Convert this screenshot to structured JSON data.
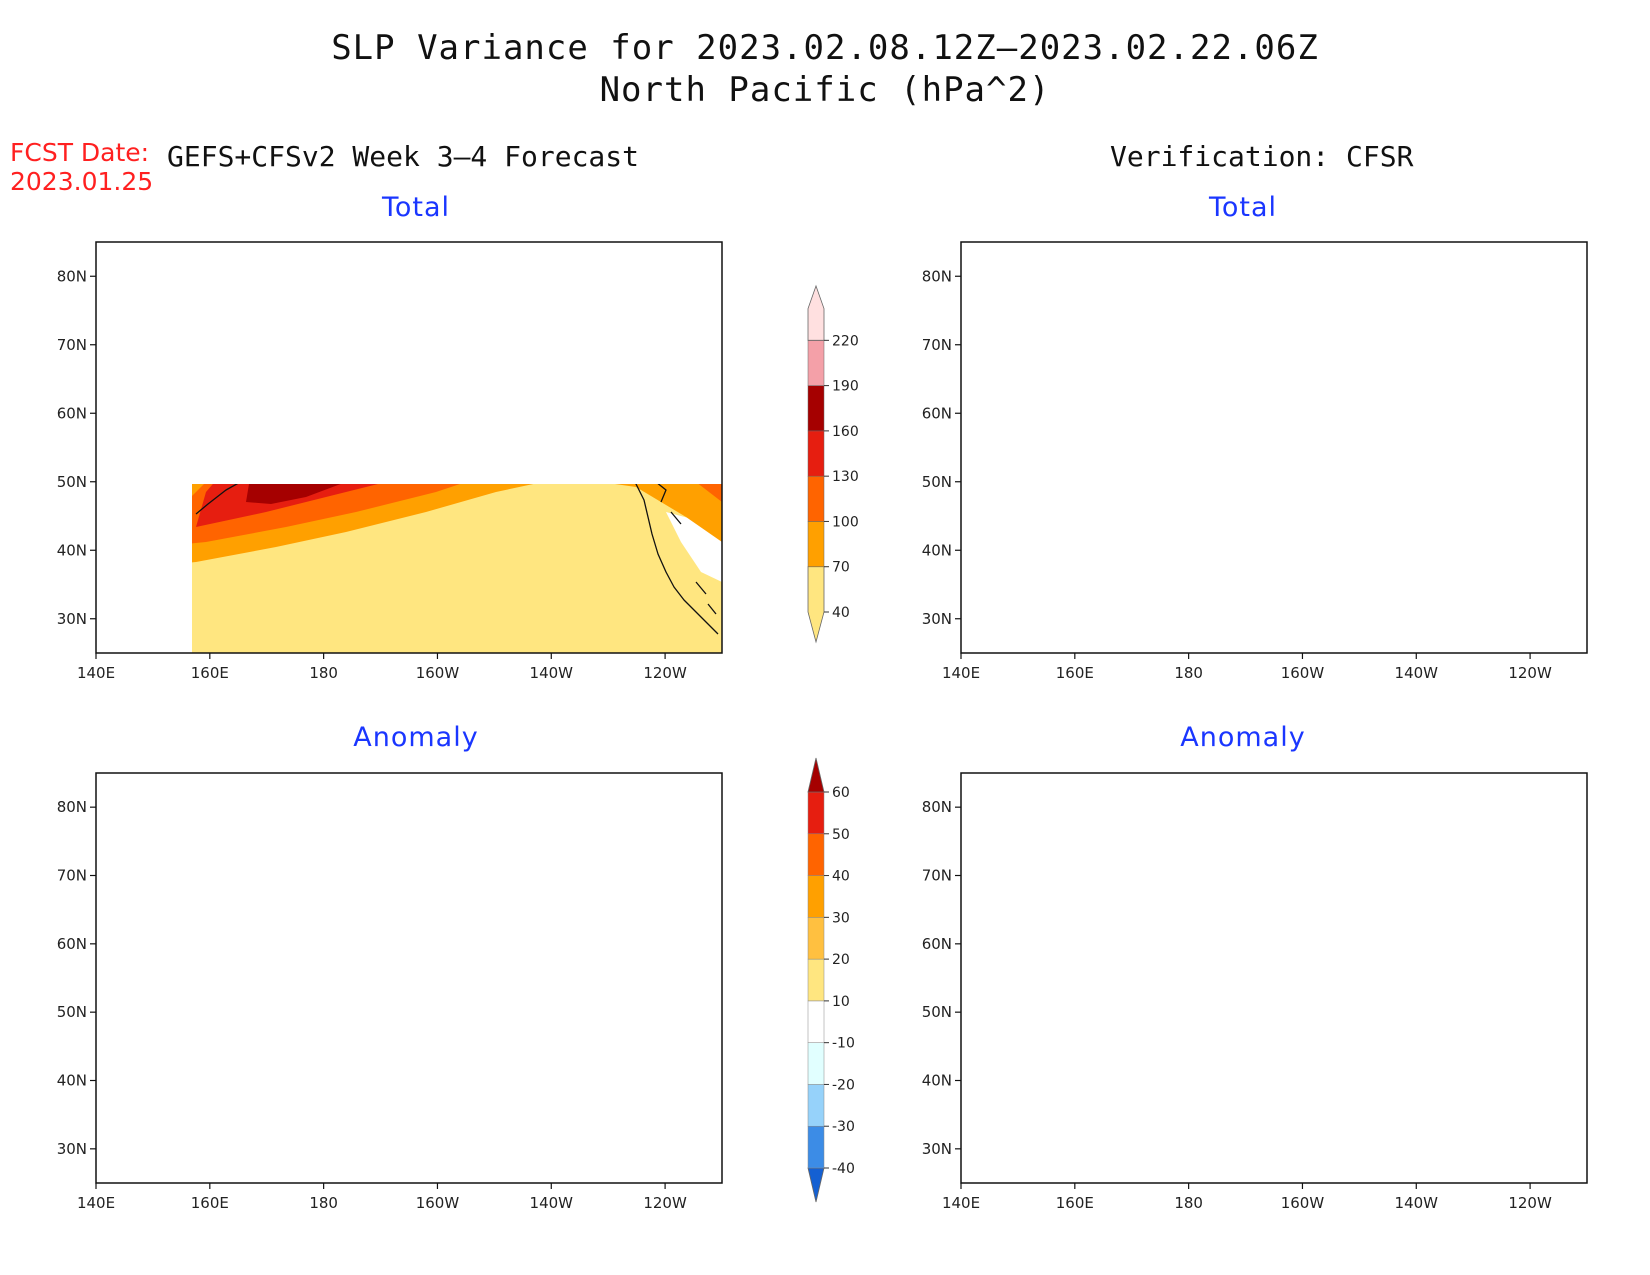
{
  "title": {
    "line1": "SLP Variance for 2023.02.08.12Z–2023.02.22.06Z",
    "line2": "North Pacific (hPa^2)"
  },
  "forecast_label": {
    "line1": "FCST Date:",
    "line2": "2023.01.25"
  },
  "columns": {
    "left": "GEFS+CFSv2 Week 3–4 Forecast",
    "right": "Verification: CFSR"
  },
  "panels": {
    "forecast_total": {
      "title": "Total"
    },
    "verification_total": {
      "title": "Total"
    },
    "forecast_anomaly": {
      "title": "Anomaly"
    },
    "verification_anomaly": {
      "title": "Anomaly"
    }
  },
  "axes": {
    "lon_ticks": [
      "140E",
      "160E",
      "180",
      "160W",
      "140W",
      "120W"
    ],
    "lat_ticks": [
      "30N",
      "40N",
      "50N",
      "60N",
      "70N",
      "80N"
    ],
    "lon_range": [
      140,
      250
    ],
    "lat_range": [
      25,
      85
    ]
  },
  "colorbars": {
    "total": {
      "levels": [
        "40",
        "70",
        "100",
        "130",
        "160",
        "190",
        "220"
      ],
      "colors": [
        "#ffe680",
        "#ffa000",
        "#ff6400",
        "#e61e10",
        "#a50000",
        "#f4a0a8",
        "#ffe0e0"
      ]
    },
    "anomaly": {
      "levels": [
        "-40",
        "-30",
        "-20",
        "-10",
        "10",
        "20",
        "30",
        "40",
        "50",
        "60"
      ],
      "colors": [
        "#1460d2",
        "#3c8ce6",
        "#96d2fa",
        "#e1ffff",
        "#ffffff",
        "#ffe680",
        "#ffc040",
        "#ffa000",
        "#ff6400",
        "#e61e10",
        "#a50000"
      ]
    }
  }
}
